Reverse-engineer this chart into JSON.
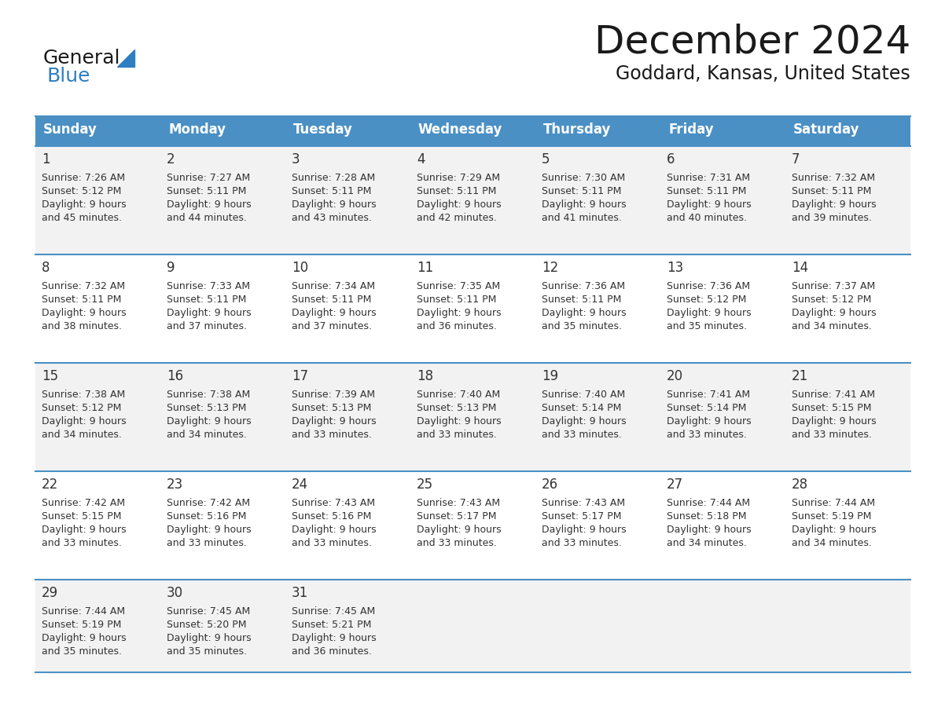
{
  "title": "December 2024",
  "subtitle": "Goddard, Kansas, United States",
  "days_of_week": [
    "Sunday",
    "Monday",
    "Tuesday",
    "Wednesday",
    "Thursday",
    "Friday",
    "Saturday"
  ],
  "header_bg": "#4A90C4",
  "header_text": "#FFFFFF",
  "row_bg_odd": "#F2F2F2",
  "row_bg_even": "#FFFFFF",
  "cell_border": "#4A90C4",
  "day_number_color": "#333333",
  "info_text_color": "#333333",
  "title_color": "#1a1a1a",
  "subtitle_color": "#1a1a1a",
  "logo_general_color": "#1a1a1a",
  "logo_blue_color": "#2E7EC2",
  "calendar_data": [
    [
      {
        "day": 1,
        "sunrise": "7:26 AM",
        "sunset": "5:12 PM",
        "daylight": "9 hours and 45 minutes."
      },
      {
        "day": 2,
        "sunrise": "7:27 AM",
        "sunset": "5:11 PM",
        "daylight": "9 hours and 44 minutes."
      },
      {
        "day": 3,
        "sunrise": "7:28 AM",
        "sunset": "5:11 PM",
        "daylight": "9 hours and 43 minutes."
      },
      {
        "day": 4,
        "sunrise": "7:29 AM",
        "sunset": "5:11 PM",
        "daylight": "9 hours and 42 minutes."
      },
      {
        "day": 5,
        "sunrise": "7:30 AM",
        "sunset": "5:11 PM",
        "daylight": "9 hours and 41 minutes."
      },
      {
        "day": 6,
        "sunrise": "7:31 AM",
        "sunset": "5:11 PM",
        "daylight": "9 hours and 40 minutes."
      },
      {
        "day": 7,
        "sunrise": "7:32 AM",
        "sunset": "5:11 PM",
        "daylight": "9 hours and 39 minutes."
      }
    ],
    [
      {
        "day": 8,
        "sunrise": "7:32 AM",
        "sunset": "5:11 PM",
        "daylight": "9 hours and 38 minutes."
      },
      {
        "day": 9,
        "sunrise": "7:33 AM",
        "sunset": "5:11 PM",
        "daylight": "9 hours and 37 minutes."
      },
      {
        "day": 10,
        "sunrise": "7:34 AM",
        "sunset": "5:11 PM",
        "daylight": "9 hours and 37 minutes."
      },
      {
        "day": 11,
        "sunrise": "7:35 AM",
        "sunset": "5:11 PM",
        "daylight": "9 hours and 36 minutes."
      },
      {
        "day": 12,
        "sunrise": "7:36 AM",
        "sunset": "5:11 PM",
        "daylight": "9 hours and 35 minutes."
      },
      {
        "day": 13,
        "sunrise": "7:36 AM",
        "sunset": "5:12 PM",
        "daylight": "9 hours and 35 minutes."
      },
      {
        "day": 14,
        "sunrise": "7:37 AM",
        "sunset": "5:12 PM",
        "daylight": "9 hours and 34 minutes."
      }
    ],
    [
      {
        "day": 15,
        "sunrise": "7:38 AM",
        "sunset": "5:12 PM",
        "daylight": "9 hours and 34 minutes."
      },
      {
        "day": 16,
        "sunrise": "7:38 AM",
        "sunset": "5:13 PM",
        "daylight": "9 hours and 34 minutes."
      },
      {
        "day": 17,
        "sunrise": "7:39 AM",
        "sunset": "5:13 PM",
        "daylight": "9 hours and 33 minutes."
      },
      {
        "day": 18,
        "sunrise": "7:40 AM",
        "sunset": "5:13 PM",
        "daylight": "9 hours and 33 minutes."
      },
      {
        "day": 19,
        "sunrise": "7:40 AM",
        "sunset": "5:14 PM",
        "daylight": "9 hours and 33 minutes."
      },
      {
        "day": 20,
        "sunrise": "7:41 AM",
        "sunset": "5:14 PM",
        "daylight": "9 hours and 33 minutes."
      },
      {
        "day": 21,
        "sunrise": "7:41 AM",
        "sunset": "5:15 PM",
        "daylight": "9 hours and 33 minutes."
      }
    ],
    [
      {
        "day": 22,
        "sunrise": "7:42 AM",
        "sunset": "5:15 PM",
        "daylight": "9 hours and 33 minutes."
      },
      {
        "day": 23,
        "sunrise": "7:42 AM",
        "sunset": "5:16 PM",
        "daylight": "9 hours and 33 minutes."
      },
      {
        "day": 24,
        "sunrise": "7:43 AM",
        "sunset": "5:16 PM",
        "daylight": "9 hours and 33 minutes."
      },
      {
        "day": 25,
        "sunrise": "7:43 AM",
        "sunset": "5:17 PM",
        "daylight": "9 hours and 33 minutes."
      },
      {
        "day": 26,
        "sunrise": "7:43 AM",
        "sunset": "5:17 PM",
        "daylight": "9 hours and 33 minutes."
      },
      {
        "day": 27,
        "sunrise": "7:44 AM",
        "sunset": "5:18 PM",
        "daylight": "9 hours and 34 minutes."
      },
      {
        "day": 28,
        "sunrise": "7:44 AM",
        "sunset": "5:19 PM",
        "daylight": "9 hours and 34 minutes."
      }
    ],
    [
      {
        "day": 29,
        "sunrise": "7:44 AM",
        "sunset": "5:19 PM",
        "daylight": "9 hours and 35 minutes."
      },
      {
        "day": 30,
        "sunrise": "7:45 AM",
        "sunset": "5:20 PM",
        "daylight": "9 hours and 35 minutes."
      },
      {
        "day": 31,
        "sunrise": "7:45 AM",
        "sunset": "5:21 PM",
        "daylight": "9 hours and 36 minutes."
      },
      null,
      null,
      null,
      null
    ]
  ]
}
